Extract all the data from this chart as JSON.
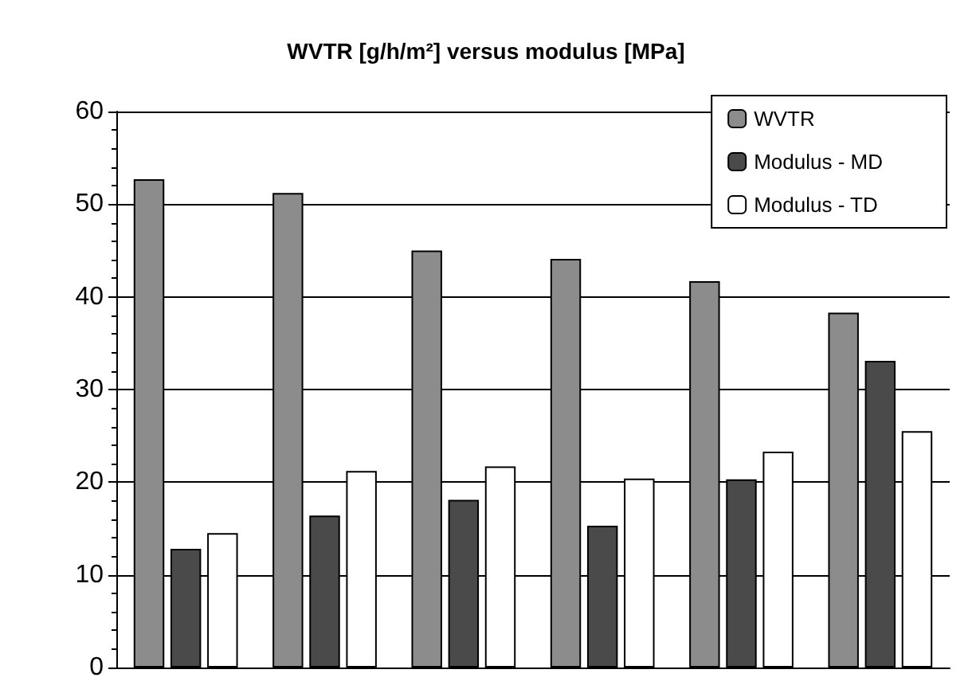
{
  "chart_data": {
    "type": "bar",
    "title": "WVTR [g/h/m²] versus modulus [MPa]",
    "categories": [
      null,
      null,
      null,
      null,
      null,
      null
    ],
    "series": [
      {
        "name": "WVTR",
        "color": "#8c8c8c",
        "values": [
          52.7,
          51.2,
          45.0,
          44.1,
          41.7,
          38.3
        ]
      },
      {
        "name": "Modulus - MD",
        "color": "#4a4a4a",
        "values": [
          12.8,
          16.4,
          18.1,
          15.3,
          20.3,
          33.1
        ]
      },
      {
        "name": "Modulus - TD",
        "color": "#ffffff",
        "values": [
          14.5,
          21.2,
          21.7,
          20.4,
          23.3,
          25.5
        ]
      }
    ],
    "ylim": [
      0,
      60
    ],
    "yticks": [
      0,
      10,
      20,
      30,
      40,
      50,
      60
    ],
    "grid": "y",
    "legend": "top right"
  }
}
